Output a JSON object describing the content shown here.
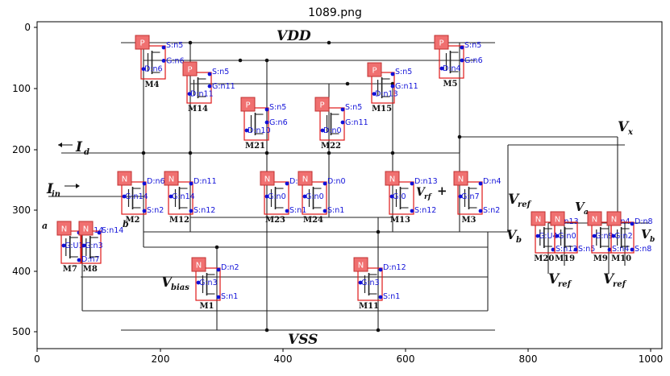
{
  "title": "1089.png",
  "axes": {
    "x_ticks": [
      "0",
      "200",
      "400",
      "600",
      "800",
      "1000"
    ],
    "y_ticks": [
      "0",
      "100",
      "200",
      "300",
      "400",
      "500"
    ]
  },
  "labels": {
    "vdd": "VDD",
    "vss": "VSS",
    "id": "I",
    "id_sub": "d",
    "iin": "I",
    "iin_sub": "in",
    "vx": "V",
    "vx_sub": "x",
    "vbias": "V",
    "vbias_sub": "bias",
    "vref1": "V",
    "vref1_sub": "ref",
    "vref2": "V",
    "vref2_sub": "ref",
    "vref3": "V",
    "vref3_sub": "ref",
    "va_left": "a",
    "vb_left": "b",
    "vb_right1": "V",
    "vb_right1_sub": "b",
    "va_right": "V",
    "va_right_sub": "a",
    "vb_right2": "V",
    "vb_right2_sub": "b",
    "vrf_mid": "V",
    "vrf_mid_sub": "rf",
    "plus_mid": "+"
  },
  "transistors": [
    {
      "id": "M4",
      "type": "P",
      "tag": "P",
      "s": "S:n5",
      "g": "G:n6",
      "d": "D:n6"
    },
    {
      "id": "M14",
      "type": "P",
      "tag": "P",
      "s": "S:n5",
      "g": "G:n11",
      "d": "D:n11"
    },
    {
      "id": "M21",
      "type": "P",
      "tag": "P",
      "s": "S:n5",
      "g": "G:n6",
      "d": "D:n10"
    },
    {
      "id": "M22",
      "type": "P",
      "tag": "P",
      "s": "S:n5",
      "g": "G:n11",
      "d": "D:n0"
    },
    {
      "id": "M15",
      "type": "P",
      "tag": "P",
      "s": "S:n5",
      "g": "G:n11",
      "d": "D:n13"
    },
    {
      "id": "M5",
      "type": "P",
      "tag": "P",
      "s": "S:n5",
      "g": "G:n6",
      "d": "D:n4"
    },
    {
      "id": "M2",
      "type": "N",
      "tag": "N",
      "d": "D:n6",
      "g": "G:n14",
      "s": "S:n2"
    },
    {
      "id": "M12",
      "type": "N",
      "tag": "N",
      "d": "D:n11",
      "g": "G:n14",
      "s": "S:n12"
    },
    {
      "id": "M23",
      "type": "N",
      "tag": "N",
      "d": "D:n10",
      "g": "G:n0",
      "s": "S:n1"
    },
    {
      "id": "M24",
      "type": "N",
      "tag": "N",
      "d": "D:n0",
      "g": "G:n0",
      "s": "S:n1"
    },
    {
      "id": "M13",
      "type": "N",
      "tag": "N",
      "d": "D:n13",
      "g": "G:0",
      "s": "S:n12"
    },
    {
      "id": "M3",
      "type": "N",
      "tag": "N",
      "d": "D:n4",
      "g": "G:n7",
      "s": "S:n2"
    },
    {
      "id": "M7",
      "type": "N",
      "tag": "N",
      "d": "S:n14",
      "g": "G:U1",
      "s": "D:n7"
    },
    {
      "id": "M8",
      "type": "N",
      "tag": "N",
      "d": "S:n14",
      "g": "G:n3",
      "s": ""
    },
    {
      "id": "M1",
      "type": "N",
      "tag": "N",
      "d": "D:n2",
      "g": "G:n3",
      "s": "S:n1"
    },
    {
      "id": "M11",
      "type": "N",
      "tag": "N",
      "d": "D:n12",
      "g": "G:n3",
      "s": "S:n1"
    },
    {
      "id": "M20",
      "type": "N",
      "tag": "N",
      "d": "D:n13",
      "g": "G:U4",
      "s": "S:n13"
    },
    {
      "id": "M19",
      "type": "N",
      "tag": "N",
      "d": "",
      "g": "G:n0",
      "s": "S:n5"
    },
    {
      "id": "M9",
      "type": "N",
      "tag": "N",
      "d": "D:n4",
      "g": "G:n9",
      "s": "S:n4"
    },
    {
      "id": "M10",
      "type": "N",
      "tag": "N",
      "d": "D:n8",
      "g": "G:n2",
      "s": "S:n8"
    }
  ],
  "extra_annotations": [
    "D:n13",
    "D:n8"
  ]
}
